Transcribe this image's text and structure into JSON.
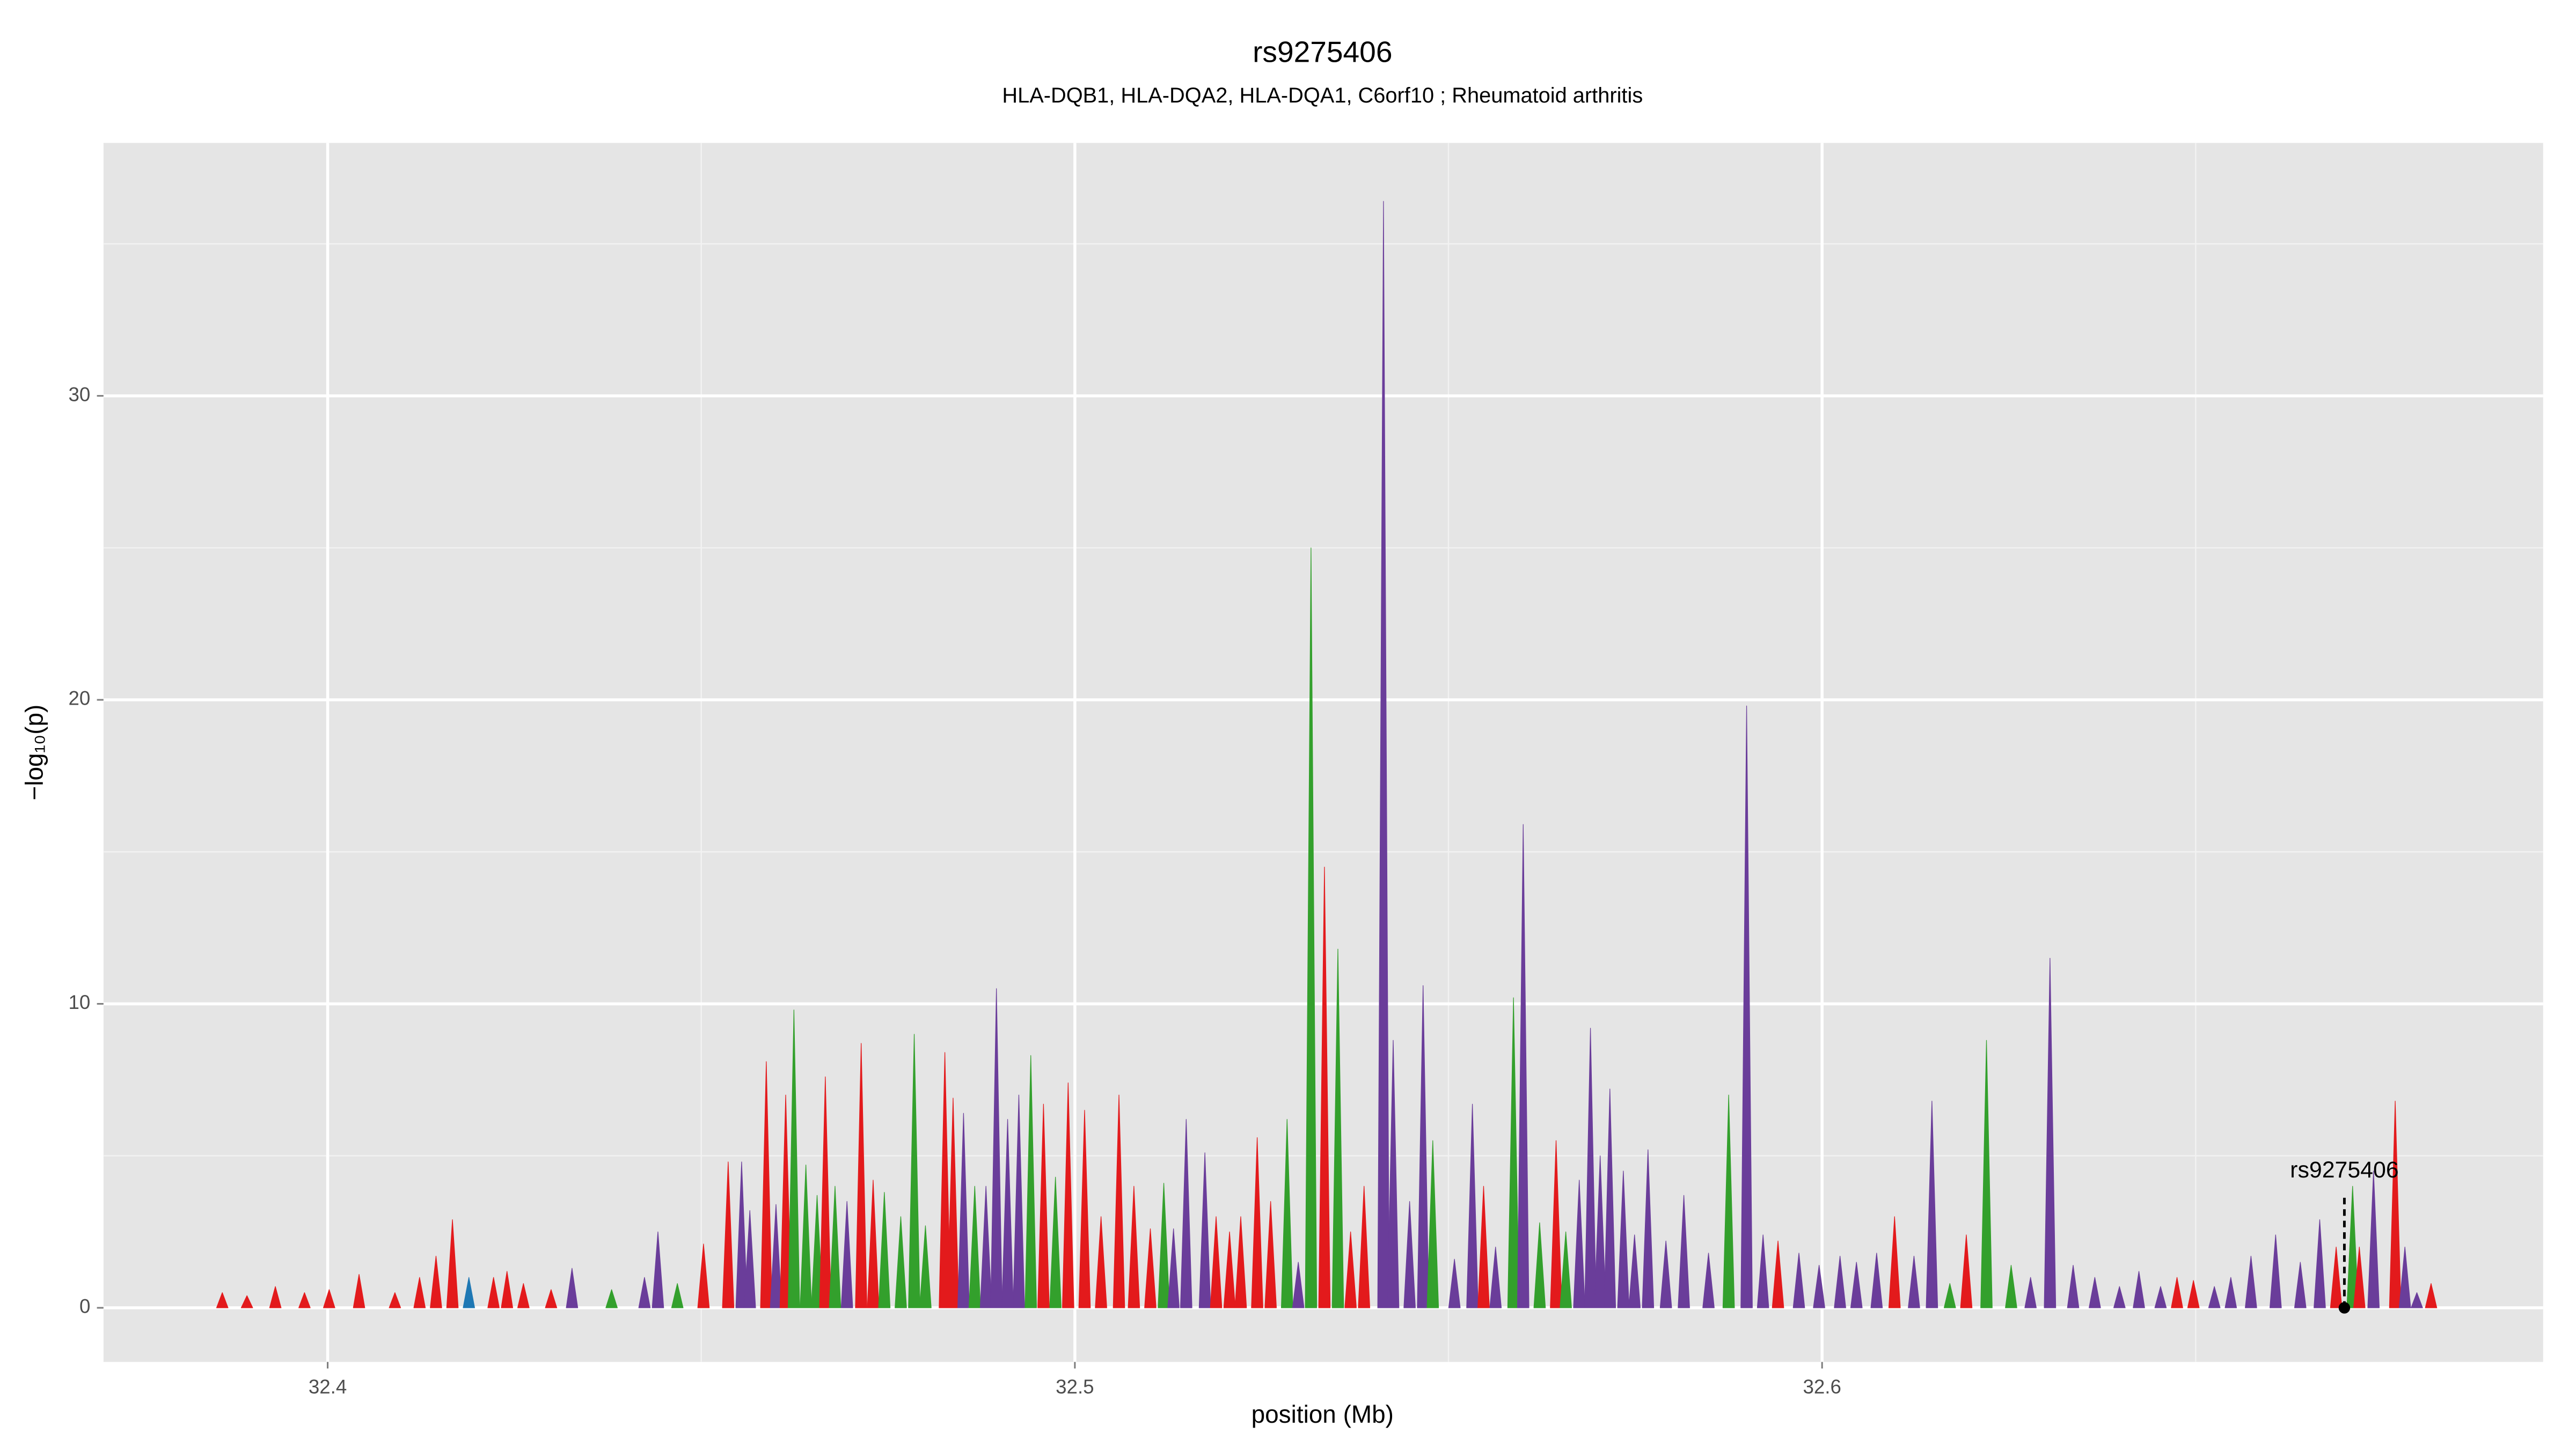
{
  "chart_data": {
    "type": "spike-area",
    "title": "rs9275406",
    "subtitle": "HLA-DQB1, HLA-DQA2, HLA-DQA1, C6orf10 ; Rheumatoid arthritis",
    "x_label": "position (Mb)",
    "y_label": "−log₁₀(p)",
    "xlim": [
      32.37,
      32.6965
    ],
    "ylim": [
      -1.78,
      38.32
    ],
    "xticks": [
      32.4,
      32.5,
      32.6
    ],
    "yticks": [
      0,
      10,
      20,
      30
    ],
    "xminor": [
      32.45,
      32.55,
      32.65
    ],
    "yminor": [
      5,
      15,
      25,
      35
    ],
    "grid": true,
    "x": [
      32.3859,
      32.3892,
      32.393,
      32.3969,
      32.4002,
      32.4042,
      32.409,
      32.4123,
      32.4145,
      32.4167,
      32.4189,
      32.4222,
      32.424,
      32.4262,
      32.4299,
      32.4327,
      32.438,
      32.4424,
      32.4442,
      32.4468,
      32.4503,
      32.4536,
      32.4554,
      32.4565,
      32.4587,
      32.46,
      32.4613,
      32.4624,
      32.464,
      32.4655,
      32.4666,
      32.4679,
      32.4695,
      32.4714,
      32.473,
      32.4745,
      32.4767,
      32.4785,
      32.48,
      32.4826,
      32.4837,
      32.4851,
      32.4866,
      32.4881,
      32.4895,
      32.491,
      32.4925,
      32.4941,
      32.4958,
      32.4974,
      32.4991,
      32.5013,
      32.5035,
      32.5059,
      32.5079,
      32.5101,
      32.5119,
      32.5132,
      32.5149,
      32.5174,
      32.5189,
      32.5207,
      32.5222,
      32.5244,
      32.5262,
      32.5284,
      32.5299,
      32.5316,
      32.5334,
      32.5352,
      32.5369,
      32.5387,
      32.5413,
      32.5426,
      32.5448,
      32.5466,
      32.5479,
      32.5508,
      32.5532,
      32.5547,
      32.5563,
      32.5587,
      32.56,
      32.5622,
      32.5644,
      32.5657,
      32.5675,
      32.569,
      32.5703,
      32.5716,
      32.5734,
      32.5749,
      32.5767,
      32.5791,
      32.5815,
      32.5848,
      32.5875,
      32.5899,
      32.5921,
      32.5941,
      32.5969,
      32.5996,
      32.6024,
      32.6046,
      32.6073,
      32.6097,
      32.6123,
      32.6147,
      32.6171,
      32.6193,
      32.622,
      32.6253,
      32.6279,
      32.6305,
      32.6336,
      32.6365,
      32.6398,
      32.6424,
      32.6453,
      32.6475,
      32.6497,
      32.6525,
      32.6547,
      32.6574,
      32.6607,
      32.664,
      32.6666,
      32.6688,
      32.671,
      32.6719,
      32.6738,
      32.6767,
      32.678,
      32.6796,
      32.6815
    ],
    "values": [
      0.5,
      0.4,
      0.7,
      0.5,
      0.6,
      1.1,
      0.5,
      1.0,
      1.7,
      2.9,
      1.0,
      1.0,
      1.2,
      0.8,
      0.6,
      1.3,
      0.6,
      1.0,
      2.5,
      0.8,
      2.1,
      4.8,
      4.8,
      3.2,
      8.1,
      3.4,
      7.0,
      9.8,
      4.7,
      3.7,
      7.6,
      4.0,
      3.5,
      8.7,
      4.2,
      3.8,
      3.0,
      9.0,
      2.7,
      8.4,
      6.9,
      6.4,
      4.0,
      4.0,
      10.5,
      6.2,
      7.0,
      8.3,
      6.7,
      4.3,
      7.4,
      6.5,
      3.0,
      7.0,
      4.0,
      2.6,
      4.1,
      2.6,
      6.2,
      5.1,
      3.0,
      2.5,
      3.0,
      5.6,
      3.5,
      6.2,
      1.5,
      25.0,
      14.5,
      11.8,
      2.5,
      4.0,
      36.4,
      8.8,
      3.5,
      10.6,
      5.5,
      1.6,
      6.7,
      4.0,
      2.0,
      10.2,
      15.9,
      2.8,
      5.5,
      2.5,
      4.2,
      9.2,
      5.0,
      7.2,
      4.5,
      2.4,
      5.2,
      2.2,
      3.7,
      1.8,
      7.0,
      19.8,
      2.4,
      2.2,
      1.8,
      1.4,
      1.7,
      1.5,
      1.8,
      3.0,
      1.7,
      6.8,
      0.8,
      2.4,
      8.8,
      1.4,
      1.0,
      11.5,
      1.4,
      1.0,
      0.7,
      1.2,
      0.7,
      1.0,
      0.9,
      0.7,
      1.0,
      1.7,
      2.4,
      1.5,
      2.9,
      2.0,
      4.0,
      2.0,
      4.5,
      6.8,
      2.0,
      0.5,
      0.8
    ],
    "colors": [
      "#e31a1c",
      "#e31a1c",
      "#e31a1c",
      "#e31a1c",
      "#e31a1c",
      "#e31a1c",
      "#e31a1c",
      "#e31a1c",
      "#e31a1c",
      "#e31a1c",
      "#1f78b4",
      "#e31a1c",
      "#e31a1c",
      "#e31a1c",
      "#e31a1c",
      "#6a3d9a",
      "#33a02c",
      "#6a3d9a",
      "#6a3d9a",
      "#33a02c",
      "#e31a1c",
      "#e31a1c",
      "#6a3d9a",
      "#6a3d9a",
      "#e31a1c",
      "#6a3d9a",
      "#e31a1c",
      "#33a02c",
      "#33a02c",
      "#33a02c",
      "#e31a1c",
      "#33a02c",
      "#6a3d9a",
      "#e31a1c",
      "#e31a1c",
      "#33a02c",
      "#33a02c",
      "#33a02c",
      "#33a02c",
      "#e31a1c",
      "#e31a1c",
      "#6a3d9a",
      "#33a02c",
      "#6a3d9a",
      "#6a3d9a",
      "#6a3d9a",
      "#6a3d9a",
      "#33a02c",
      "#e31a1c",
      "#33a02c",
      "#e31a1c",
      "#e31a1c",
      "#e31a1c",
      "#e31a1c",
      "#e31a1c",
      "#e31a1c",
      "#33a02c",
      "#6a3d9a",
      "#6a3d9a",
      "#6a3d9a",
      "#e31a1c",
      "#e31a1c",
      "#e31a1c",
      "#e31a1c",
      "#e31a1c",
      "#33a02c",
      "#6a3d9a",
      "#33a02c",
      "#e31a1c",
      "#33a02c",
      "#e31a1c",
      "#e31a1c",
      "#6a3d9a",
      "#6a3d9a",
      "#6a3d9a",
      "#6a3d9a",
      "#33a02c",
      "#6a3d9a",
      "#6a3d9a",
      "#e31a1c",
      "#6a3d9a",
      "#33a02c",
      "#6a3d9a",
      "#33a02c",
      "#e31a1c",
      "#33a02c",
      "#6a3d9a",
      "#6a3d9a",
      "#6a3d9a",
      "#6a3d9a",
      "#6a3d9a",
      "#6a3d9a",
      "#6a3d9a",
      "#6a3d9a",
      "#6a3d9a",
      "#6a3d9a",
      "#33a02c",
      "#6a3d9a",
      "#6a3d9a",
      "#e31a1c",
      "#6a3d9a",
      "#6a3d9a",
      "#6a3d9a",
      "#6a3d9a",
      "#6a3d9a",
      "#e31a1c",
      "#6a3d9a",
      "#6a3d9a",
      "#33a02c",
      "#e31a1c",
      "#33a02c",
      "#33a02c",
      "#6a3d9a",
      "#6a3d9a",
      "#6a3d9a",
      "#6a3d9a",
      "#6a3d9a",
      "#6a3d9a",
      "#6a3d9a",
      "#e31a1c",
      "#e31a1c",
      "#6a3d9a",
      "#6a3d9a",
      "#6a3d9a",
      "#6a3d9a",
      "#6a3d9a",
      "#6a3d9a",
      "#e31a1c",
      "#33a02c",
      "#e31a1c",
      "#6a3d9a",
      "#e31a1c",
      "#6a3d9a",
      "#6a3d9a",
      "#e31a1c"
    ],
    "annotations": [
      {
        "text": "rs9275406",
        "x": 32.6699,
        "y": 0
      }
    ]
  }
}
